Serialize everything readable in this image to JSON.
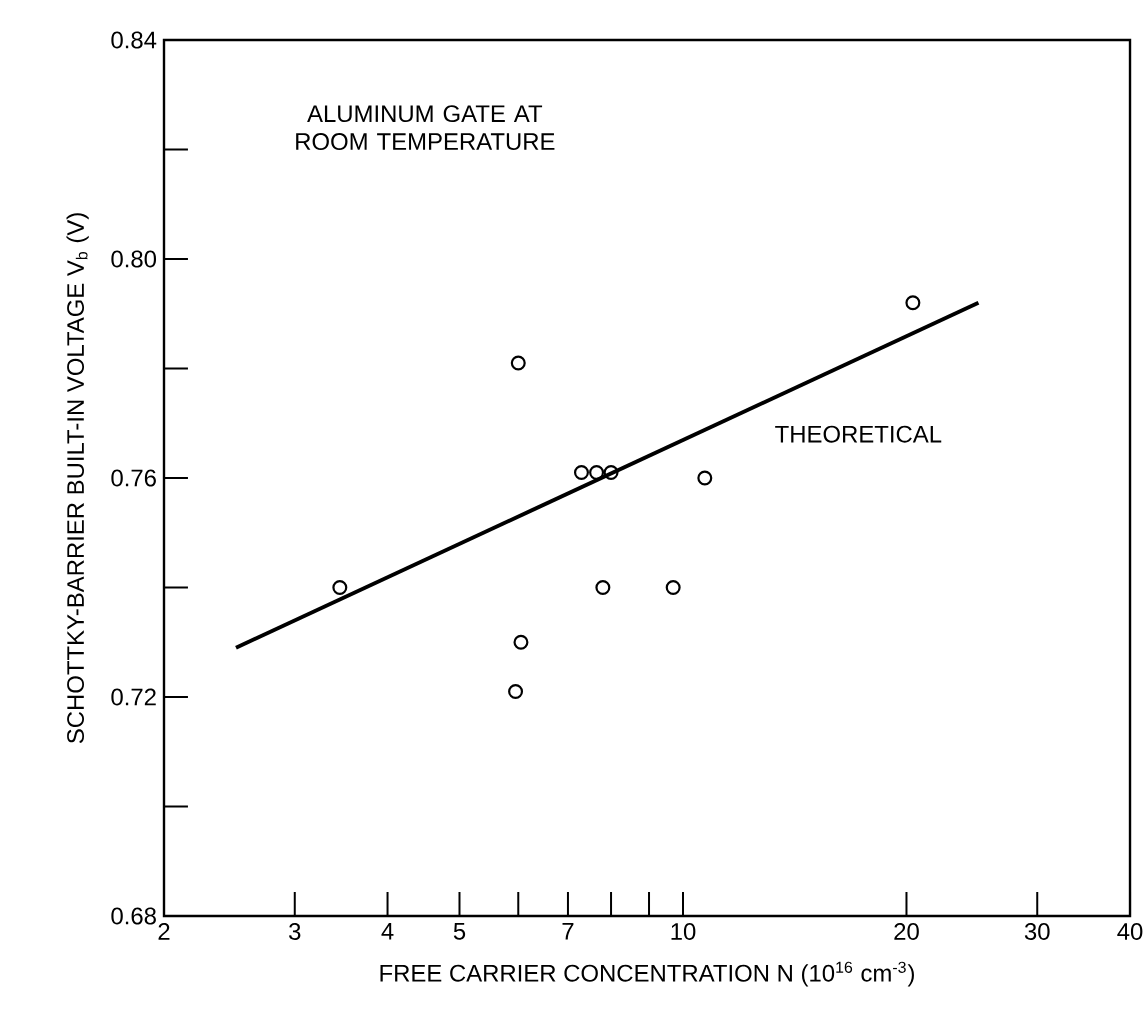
{
  "chart_data": {
    "type": "scatter",
    "xlabel": "FREE CARRIER CONCENTRATION N (10$^{16}$ cm$^{-3}$)",
    "ylabel": "SCHOTTKY-BARRIER BUILT-IN VOLTAGE V$_{b}$ (V)",
    "annotations": [
      "ALUMINUM GATE AT ROOM TEMPERATURE"
    ],
    "series": [
      {
        "color": "#000000",
        "marker": "circle",
        "x": [
          3.45,
          6.0,
          6.05,
          5.95,
          7.3,
          7.65,
          8.0,
          7.8,
          9.7,
          10.7,
          20.4
        ],
        "values": [
          0.74,
          0.781,
          0.73,
          0.721,
          0.761,
          0.761,
          0.761,
          0.74,
          0.74,
          0.76,
          0.792
        ]
      },
      {
        "type": "line",
        "name": "THEORETICAL",
        "color": "#000000",
        "marker": "none",
        "line_style": "solid",
        "x": [
          2.5,
          25
        ],
        "values": [
          0.729,
          0.792
        ]
      }
    ],
    "log": "x",
    "xlim": [
      2,
      40
    ],
    "ylim": [
      0.68,
      0.84
    ],
    "xticks": [
      2,
      3,
      4,
      5,
      {
        "value": 6,
        "label": null
      },
      7,
      {
        "value": 8,
        "label": null
      },
      {
        "value": 9,
        "label": null
      },
      10,
      20,
      30,
      40
    ],
    "yticks": [
      0.68,
      {
        "value": 0.7,
        "label": null
      },
      0.72,
      {
        "value": 0.74,
        "label": null
      },
      0.76,
      {
        "value": 0.78,
        "label": null
      },
      {
        "value": 0.8,
        "label": "0.80"
      },
      {
        "value": 0.82,
        "label": null
      },
      0.84
    ],
    "grid": false,
    "legend": false
  }
}
